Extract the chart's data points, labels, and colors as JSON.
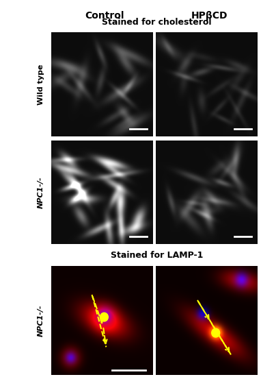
{
  "title_col1": "Control",
  "title_col2": "HPβCD",
  "subtitle_top": "Stained for cholesterol",
  "subtitle_bottom": "Stained for LAMP-1",
  "row_label1": "Wild type",
  "row_label2": "NPC1-/-",
  "row_label3": "NPC1-/-"
}
